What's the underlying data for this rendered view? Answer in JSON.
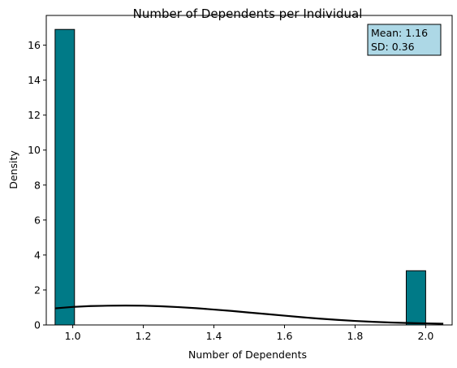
{
  "chart_data": {
    "type": "bar",
    "title": "Number of Dependents per Individual",
    "xlabel": "Number of Dependents",
    "ylabel": "Density",
    "xlim": [
      0.925,
      2.075
    ],
    "ylim": [
      0,
      17.7
    ],
    "x_ticks": [
      "1.0",
      "1.2",
      "1.4",
      "1.6",
      "1.8",
      "2.0"
    ],
    "x_tick_values": [
      1.0,
      1.2,
      1.4,
      1.6,
      1.8,
      2.0
    ],
    "y_ticks": [
      "0",
      "2",
      "4",
      "6",
      "8",
      "10",
      "12",
      "14",
      "16"
    ],
    "y_tick_values": [
      0,
      2,
      4,
      6,
      8,
      10,
      12,
      14,
      16
    ],
    "bins": [
      {
        "x0": 0.95,
        "x1": 1.005,
        "value": 16.9
      },
      {
        "x0": 1.945,
        "x1": 2.0,
        "value": 3.1
      }
    ],
    "kde": {
      "x": [
        0.95,
        1.0,
        1.05,
        1.1,
        1.15,
        1.2,
        1.25,
        1.3,
        1.35,
        1.4,
        1.45,
        1.5,
        1.55,
        1.6,
        1.65,
        1.7,
        1.75,
        1.8,
        1.85,
        1.9,
        1.95,
        2.0,
        2.05
      ],
      "y": [
        0.95,
        1.03,
        1.08,
        1.1,
        1.11,
        1.1,
        1.07,
        1.02,
        0.96,
        0.88,
        0.8,
        0.71,
        0.62,
        0.53,
        0.44,
        0.36,
        0.29,
        0.23,
        0.18,
        0.14,
        0.11,
        0.09,
        0.07
      ]
    },
    "stats_box": {
      "mean_label": "Mean: 1.16",
      "sd_label": "SD: 0.36"
    },
    "colors": {
      "bar": "#007a87",
      "bar_edge": "#000000",
      "kde": "#000000",
      "stats_bg": "#add8e6"
    },
    "grid": false
  }
}
